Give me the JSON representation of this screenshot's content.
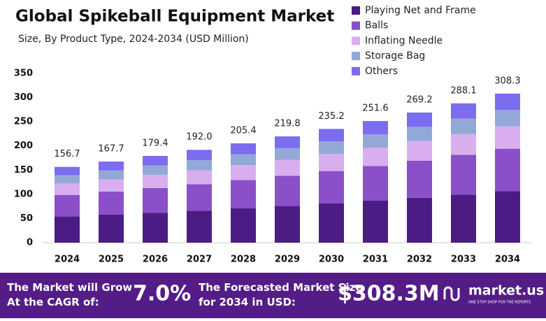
{
  "chart_data": {
    "type": "stacked_bar",
    "title": "Global Spikeball Equipment Market",
    "subtitle": "Size, By Product Type, 2024-2034 (USD Million)",
    "categories": [
      "2024",
      "2025",
      "2026",
      "2027",
      "2028",
      "2029",
      "2030",
      "2031",
      "2032",
      "2033",
      "2034"
    ],
    "series": [
      {
        "name": "Playing Net and Frame",
        "color": "#4b1c83",
        "values": [
          54.1,
          57.9,
          61.9,
          66.2,
          70.9,
          75.8,
          81.1,
          86.8,
          92.9,
          99.4,
          106.4
        ]
      },
      {
        "name": "Balls",
        "color": "#8a4fc9",
        "values": [
          44.7,
          47.8,
          51.1,
          54.7,
          58.5,
          62.6,
          67.0,
          71.7,
          76.7,
          82.1,
          87.9
        ]
      },
      {
        "name": "Inflating Needle",
        "color": "#d8aeee",
        "values": [
          23.5,
          25.2,
          26.9,
          28.8,
          30.8,
          33.0,
          35.3,
          37.7,
          40.4,
          43.2,
          46.2
        ]
      },
      {
        "name": "Storage Bag",
        "color": "#94a8d8",
        "values": [
          17.2,
          18.4,
          19.7,
          21.1,
          22.6,
          24.2,
          25.9,
          27.7,
          29.6,
          31.7,
          33.9
        ]
      },
      {
        "name": "Others",
        "color": "#7b6cf0",
        "values": [
          17.2,
          18.4,
          19.8,
          21.2,
          22.6,
          24.2,
          25.9,
          27.7,
          29.6,
          31.7,
          33.9
        ]
      }
    ],
    "totals": [
      156.7,
      167.7,
      179.4,
      {
        "value": 192.0,
        "label": "192.0"
      },
      205.4,
      219.8,
      235.2,
      251.6,
      269.2,
      288.1,
      308.3
    ],
    "ylim": [
      0,
      350
    ],
    "yticks": [
      0,
      50,
      100,
      150,
      200,
      250,
      300,
      350
    ],
    "grid": false,
    "legend": "top-right"
  },
  "footer": {
    "cagr_text": "The Market will Grow At the CAGR of:",
    "cagr_value": "7.0%",
    "forecast_text": "The Forecasted Market Size for 2034 in USD:",
    "forecast_value": "$308.3M",
    "brand": "market.us",
    "tagline": "ONE STOP SHOP FOR THE REPORTS"
  }
}
